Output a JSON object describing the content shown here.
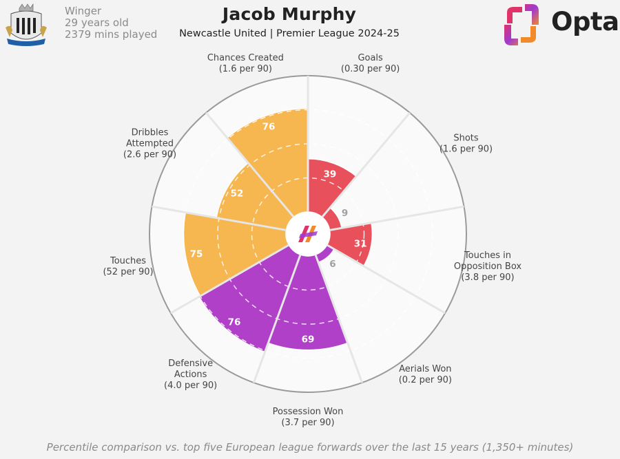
{
  "player": {
    "name": "Jacob Murphy",
    "position": "Winger",
    "age": "29 years old",
    "minutes": "2379 mins played",
    "team_season": "Newcastle United | Premier League 2024-25",
    "crest_text": "NEWCASTLE UNITED"
  },
  "brand": {
    "name": "Opta"
  },
  "footer": "Percentile comparison vs. top five European league forwards over the last 15 years (1,350+ minutes)",
  "colors": {
    "attacking": "#e8505b",
    "possession": "#b040c8",
    "passing": "#f6b650",
    "background": "#f3f3f3",
    "segment_fill": "#fafafa"
  },
  "chart_data": {
    "type": "radar-bar",
    "scale": [
      0,
      100
    ],
    "grid": true,
    "axes": [
      {
        "label": [
          "Goals",
          "(0.30 per 90)"
        ],
        "value": 39,
        "group": "attacking"
      },
      {
        "label": [
          "Shots",
          "(1.6 per 90)"
        ],
        "value": 9,
        "group": "attacking"
      },
      {
        "label": [
          "Touches in",
          "Opposition Box",
          "(3.8 per 90)"
        ],
        "value": 31,
        "group": "attacking"
      },
      {
        "label": [
          "Aerials Won",
          "(0.2 per 90)"
        ],
        "value": 6,
        "group": "possession"
      },
      {
        "label": [
          "Possession Won",
          "(3.7 per 90)"
        ],
        "value": 69,
        "group": "possession"
      },
      {
        "label": [
          "Defensive",
          "Actions",
          "(4.0 per 90)"
        ],
        "value": 76,
        "group": "possession"
      },
      {
        "label": [
          "Touches",
          "(52 per 90)"
        ],
        "value": 75,
        "group": "passing"
      },
      {
        "label": [
          "Dribbles",
          "Attempted",
          "(2.6 per 90)"
        ],
        "value": 52,
        "group": "passing"
      },
      {
        "label": [
          "Chances Created",
          "(1.6 per 90)"
        ],
        "value": 76,
        "group": "passing"
      }
    ]
  }
}
